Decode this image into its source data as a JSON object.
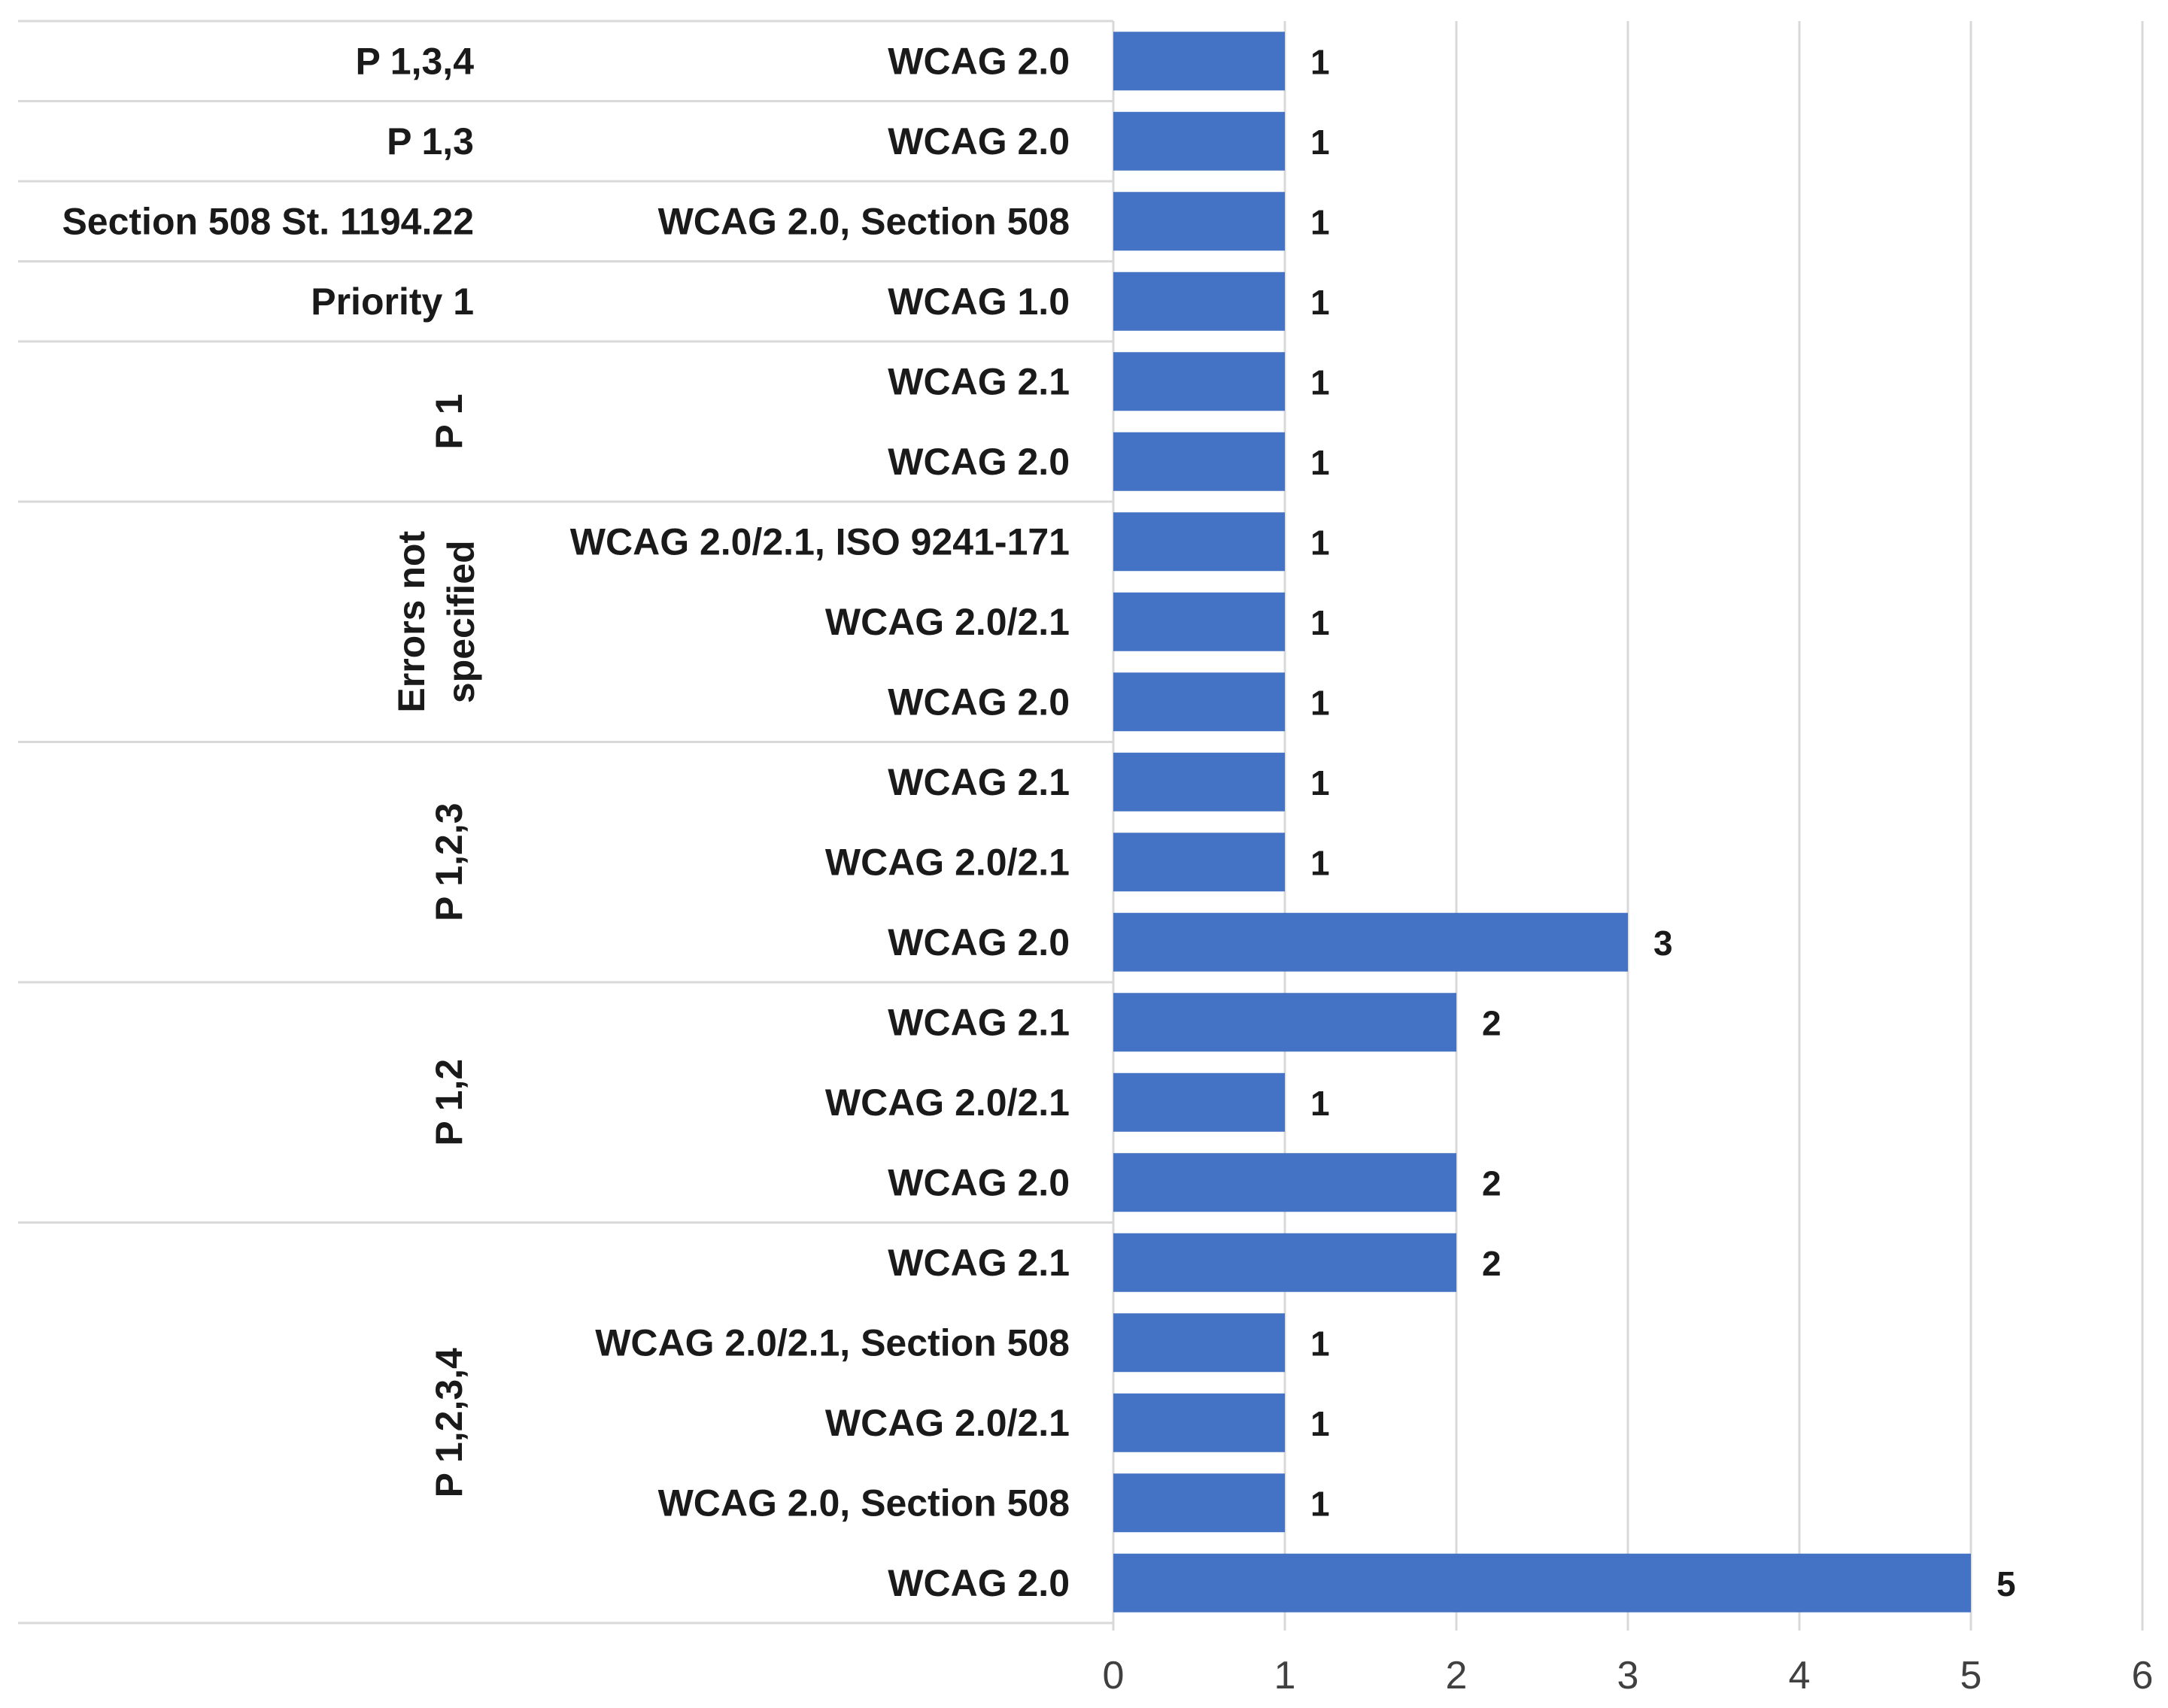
{
  "chart_data": {
    "type": "bar",
    "orientation": "horizontal",
    "title": "",
    "xlabel": "",
    "ylabel": "",
    "xlim": [
      0,
      6
    ],
    "xticks": [
      0,
      1,
      2,
      3,
      4,
      5,
      6
    ],
    "grid": true,
    "bar_color": "#4472c4",
    "groups": [
      {
        "name": "P 1,3,4",
        "rows": [
          {
            "label": "WCAG 2.0",
            "value": 1
          }
        ]
      },
      {
        "name": "P 1,3",
        "rows": [
          {
            "label": "WCAG 2.0",
            "value": 1
          }
        ]
      },
      {
        "name": "Section 508 St. 1194.22",
        "rows": [
          {
            "label": "WCAG 2.0, Section 508",
            "value": 1
          }
        ]
      },
      {
        "name": "Priority 1",
        "rows": [
          {
            "label": "WCAG 1.0",
            "value": 1
          }
        ]
      },
      {
        "name": "P 1",
        "rows": [
          {
            "label": "WCAG 2.1",
            "value": 1
          },
          {
            "label": "WCAG 2.0",
            "value": 1
          }
        ]
      },
      {
        "name": "Errors not specified",
        "name_lines": [
          "Errors not",
          "specified"
        ],
        "rows": [
          {
            "label": "WCAG 2.0/2.1, ISO 9241-171",
            "value": 1
          },
          {
            "label": "WCAG 2.0/2.1",
            "value": 1
          },
          {
            "label": "WCAG 2.0",
            "value": 1
          }
        ]
      },
      {
        "name": "P 1,2,3",
        "rows": [
          {
            "label": "WCAG 2.1",
            "value": 1
          },
          {
            "label": "WCAG 2.0/2.1",
            "value": 1
          },
          {
            "label": "WCAG 2.0",
            "value": 3
          }
        ]
      },
      {
        "name": "P 1,2",
        "rows": [
          {
            "label": "WCAG 2.1",
            "value": 2
          },
          {
            "label": "WCAG 2.0/2.1",
            "value": 1
          },
          {
            "label": "WCAG 2.0",
            "value": 2
          }
        ]
      },
      {
        "name": "P 1,2,3,4",
        "rows": [
          {
            "label": "WCAG 2.1",
            "value": 2
          },
          {
            "label": "WCAG 2.0/2.1, Section 508",
            "value": 1
          },
          {
            "label": "WCAG 2.0/2.1",
            "value": 1
          },
          {
            "label": "WCAG 2.0, Section 508",
            "value": 1
          },
          {
            "label": "WCAG 2.0",
            "value": 5
          }
        ]
      }
    ]
  }
}
